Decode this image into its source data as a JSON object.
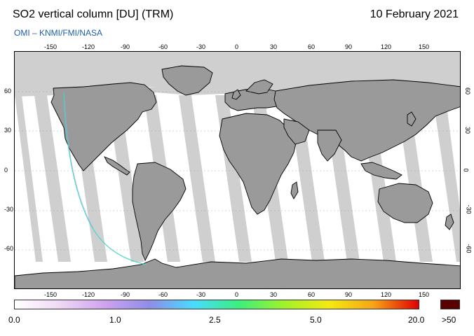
{
  "header": {
    "title": "SO2 vertical column [DU] (TRM)",
    "date": "10 February 2021",
    "source": "OMI  –  KNMI/FMI/NASA"
  },
  "map": {
    "projection": "equirectangular",
    "lon_ticks": [
      "-150",
      "-120",
      "-90",
      "-60",
      "-30",
      "0",
      "30",
      "60",
      "90",
      "120",
      "150"
    ],
    "lat_ticks": [
      "60",
      "30",
      "0",
      "-30",
      "-60"
    ],
    "colors": {
      "ocean": "#ffffff",
      "land": "#9a9a9a",
      "no_data": "#cfcfcf",
      "coastline": "#000000",
      "trajectory": "#44d7c8"
    }
  },
  "colorbar": {
    "labels": [
      "0.0",
      "1.0",
      "2.5",
      "5.0",
      "20.0"
    ],
    "overflow_label": ">50",
    "overflow_color": "#5a0000",
    "gradient_colors": [
      "#ffffff",
      "#f0d8f5",
      "#cfa3f0",
      "#8f8de8",
      "#47dcff",
      "#3bf07c",
      "#9ff22a",
      "#f4ea10",
      "#f7a316",
      "#e10000"
    ]
  }
}
